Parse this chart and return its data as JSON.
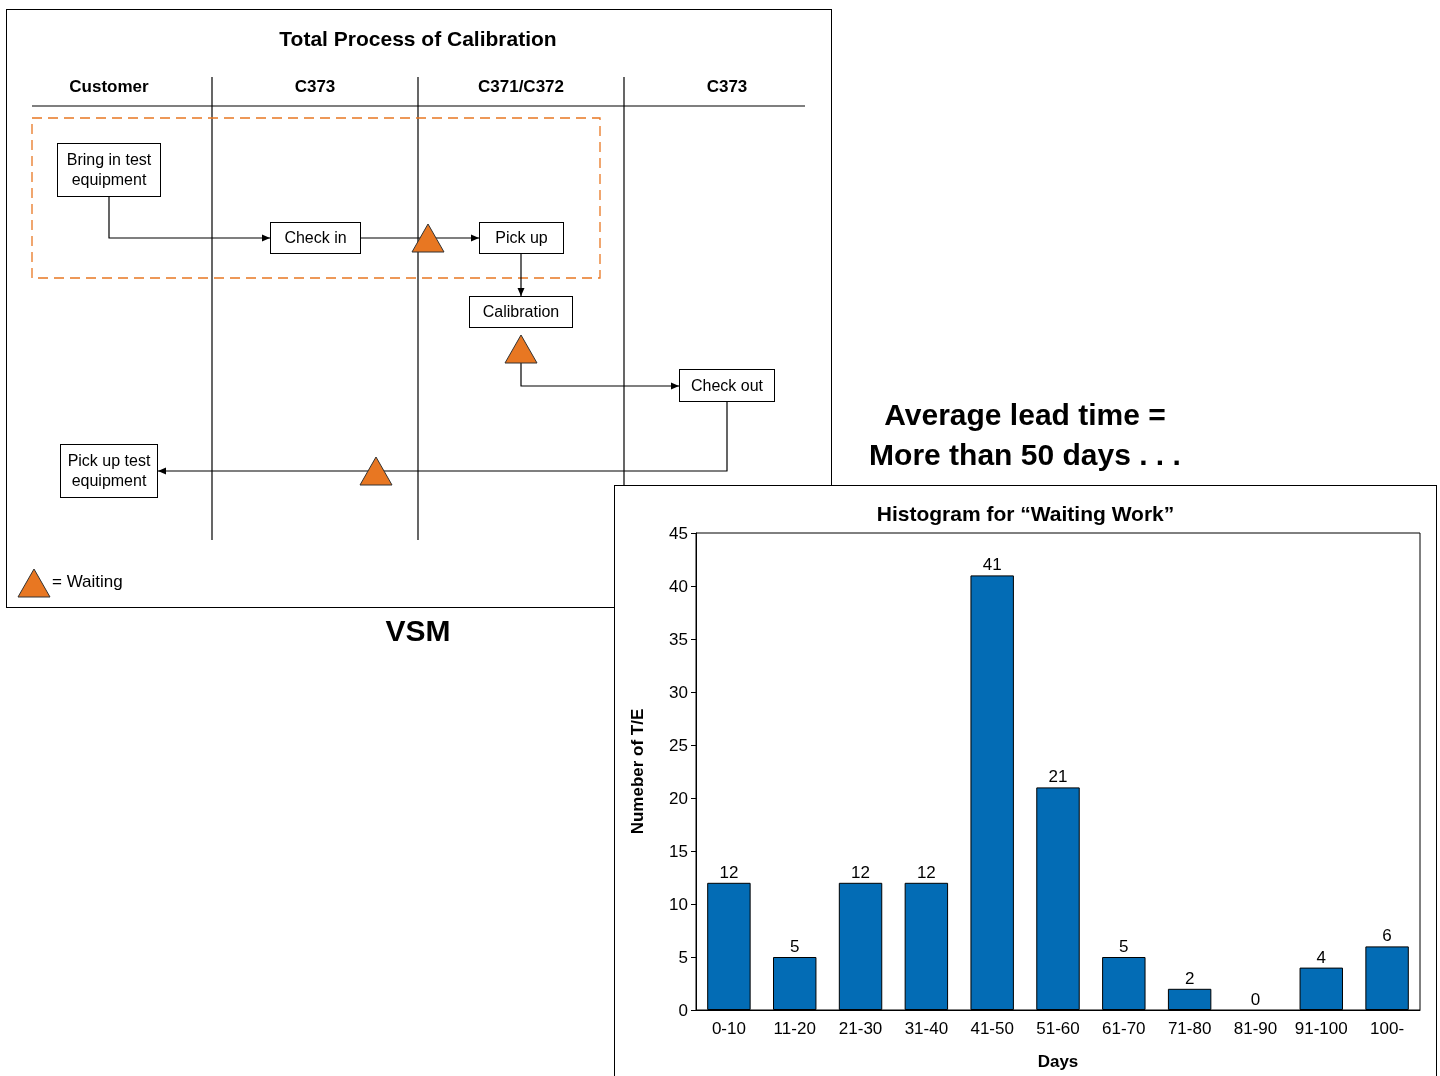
{
  "chart_data": [
    {
      "type": "other",
      "title": "Total Process of Calibration",
      "categories": [
        "Customer",
        "C373",
        "C371/C372",
        "C373"
      ],
      "annotations": [
        "Bring in test equipment",
        "Check in",
        "Pick up",
        "Calibration",
        "Check out",
        "Pick up test equipment",
        "= Waiting",
        "VSM"
      ]
    },
    {
      "type": "bar",
      "title": "Histogram for “Waiting Work”",
      "xlabel": "Days",
      "ylabel": "Numeber of T/E",
      "annotations": [
        "Average lead time = More than 50 days . . ."
      ],
      "categories": [
        "0-10",
        "11-20",
        "21-30",
        "31-40",
        "41-50",
        "51-60",
        "61-70",
        "71-80",
        "81-90",
        "91-100",
        "100-"
      ],
      "values": [
        12,
        5,
        12,
        12,
        41,
        21,
        5,
        2,
        0,
        4,
        6
      ],
      "color": "#036cb5",
      "ylim": [
        0,
        45
      ],
      "yticks": [
        0,
        5,
        10,
        15,
        20,
        25,
        30,
        35,
        40,
        45
      ],
      "grid": false,
      "data_labels": true
    }
  ]
}
